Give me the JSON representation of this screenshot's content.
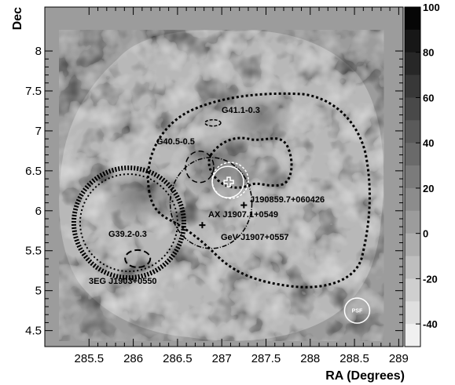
{
  "chart_data": {
    "type": "heatmap",
    "title": "",
    "xlabel": "RA (Degrees)",
    "ylabel": "Dec",
    "xlim": [
      285.0,
      289.05
    ],
    "ylim": [
      4.3,
      8.55
    ],
    "x_reversed": false,
    "x_ticks": [
      "285.5",
      "286",
      "286.5",
      "287",
      "287.5",
      "288",
      "288.5",
      "289"
    ],
    "y_ticks": [
      "4.5",
      "5",
      "5.5",
      "6",
      "6.5",
      "7",
      "7.5",
      "8"
    ],
    "colorbar": {
      "ticks": [
        "100",
        "80",
        "60",
        "40",
        "20",
        "0",
        "-20",
        "-40"
      ],
      "range": [
        -50,
        100
      ],
      "colormap": "grayscale, black = high"
    },
    "background_value": 0,
    "regions": [
      {
        "label": "G41.1-0.3",
        "ra": 286.9,
        "dec": 7.1,
        "style": "dashed-ellipse"
      },
      {
        "label": "G40.5-0.5",
        "ra": 286.75,
        "dec": 6.55,
        "style": "dashed-ellipse"
      },
      {
        "label": "J190859.7+060426",
        "ra": 287.25,
        "dec": 6.07,
        "style": "marker-cross"
      },
      {
        "label": "AX J1907.1+0549",
        "ra": 286.78,
        "dec": 5.82,
        "style": "marker-cross"
      },
      {
        "label": "GeV J1907+0557",
        "ra": 286.95,
        "dec": 5.95,
        "style": "dotted-contour"
      },
      {
        "label": "G39.2-0.3",
        "ra": 286.05,
        "dec": 5.4,
        "style": "dashed-ellipse"
      },
      {
        "label": "3EG J1903+0550",
        "ra": 285.95,
        "dec": 5.85,
        "style": "dense-dotted-circle"
      }
    ],
    "psf_label": "PSF",
    "psf_center": {
      "ra": 288.53,
      "dec": 4.75
    }
  }
}
